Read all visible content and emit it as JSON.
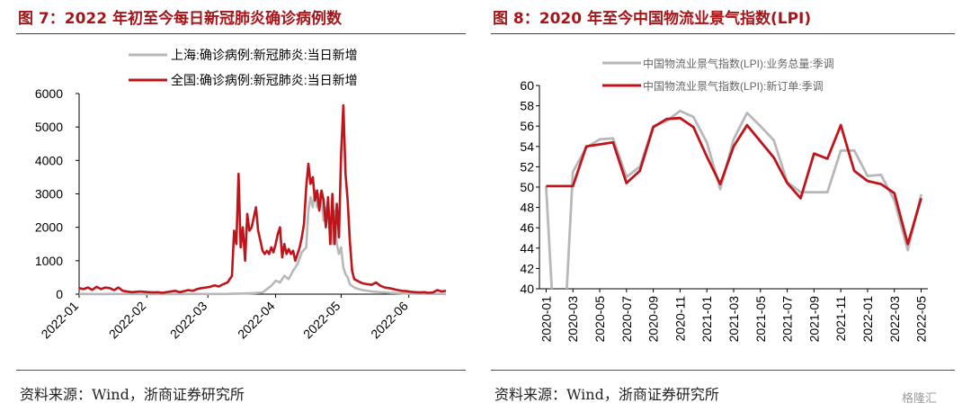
{
  "left": {
    "title": "图 7：2022 年初至今每日新冠肺炎确诊病例数",
    "source": "资料来源：Wind，浙商证券研究所"
  },
  "right": {
    "title": "图 8：2020 年至今中国物流业景气指数(LPI)",
    "source": "资料来源：Wind，浙商证券研究所"
  },
  "watermark": "格隆汇",
  "colors": {
    "red": "#c0141b",
    "gray": "#b8b8b8",
    "title": "#a5161b"
  },
  "chart_data": [
    {
      "type": "line",
      "title": "图 7：2022 年初至今每日新冠肺炎确诊病例数",
      "xlabel": "",
      "ylabel": "",
      "ylim": [
        0,
        6000
      ],
      "yticks": [
        0,
        1000,
        2000,
        3000,
        4000,
        5000,
        6000
      ],
      "ytick_labels": [
        "0",
        "1000",
        "2000",
        "3000",
        "4000",
        "5000",
        "6000"
      ],
      "xtick_labels": [
        "2022-01",
        "2022-02",
        "2022-03",
        "2022-04",
        "2022-05",
        "2022-06"
      ],
      "xlim": [
        0,
        168
      ],
      "xticks": [
        0,
        31,
        59,
        90,
        120,
        151
      ],
      "legend_position": "top",
      "series": [
        {
          "name": "上海:确诊病例:新冠肺炎:当日新增",
          "color": "#b8b8b8",
          "points": [
            [
              0,
              5
            ],
            [
              10,
              3
            ],
            [
              20,
              5
            ],
            [
              30,
              2
            ],
            [
              40,
              4
            ],
            [
              50,
              5
            ],
            [
              59,
              5
            ],
            [
              66,
              5
            ],
            [
              70,
              10
            ],
            [
              75,
              20
            ],
            [
              80,
              30
            ],
            [
              84,
              50
            ],
            [
              86,
              150
            ],
            [
              88,
              250
            ],
            [
              90,
              400
            ],
            [
              92,
              350
            ],
            [
              94,
              550
            ],
            [
              96,
              450
            ],
            [
              98,
              700
            ],
            [
              100,
              900
            ],
            [
              102,
              1250
            ],
            [
              104,
              1400
            ],
            [
              105,
              2500
            ],
            [
              106,
              2900
            ],
            [
              107,
              2600
            ],
            [
              108,
              3100
            ],
            [
              109,
              2600
            ],
            [
              110,
              3000
            ],
            [
              111,
              2800
            ],
            [
              112,
              2200
            ],
            [
              113,
              2600
            ],
            [
              114,
              2300
            ],
            [
              115,
              1800
            ],
            [
              116,
              1500
            ],
            [
              117,
              2500
            ],
            [
              118,
              1500
            ],
            [
              119,
              1200
            ],
            [
              120,
              1400
            ],
            [
              121,
              800
            ],
            [
              122,
              600
            ],
            [
              123,
              500
            ],
            [
              124,
              300
            ],
            [
              126,
              200
            ],
            [
              128,
              150
            ],
            [
              130,
              120
            ],
            [
              134,
              80
            ],
            [
              138,
              60
            ],
            [
              142,
              40
            ],
            [
              146,
              30
            ],
            [
              150,
              20
            ],
            [
              155,
              15
            ],
            [
              160,
              10
            ],
            [
              165,
              8
            ],
            [
              168,
              5
            ]
          ]
        },
        {
          "name": "全国:确诊病例:新冠肺炎:当日新增",
          "color": "#c0141b",
          "points": [
            [
              0,
              180
            ],
            [
              2,
              150
            ],
            [
              4,
              200
            ],
            [
              6,
              130
            ],
            [
              8,
              220
            ],
            [
              10,
              150
            ],
            [
              12,
              200
            ],
            [
              14,
              180
            ],
            [
              16,
              120
            ],
            [
              18,
              200
            ],
            [
              20,
              100
            ],
            [
              22,
              80
            ],
            [
              24,
              60
            ],
            [
              26,
              70
            ],
            [
              28,
              80
            ],
            [
              30,
              70
            ],
            [
              32,
              60
            ],
            [
              34,
              50
            ],
            [
              36,
              60
            ],
            [
              38,
              40
            ],
            [
              40,
              60
            ],
            [
              42,
              80
            ],
            [
              44,
              100
            ],
            [
              46,
              60
            ],
            [
              48,
              90
            ],
            [
              50,
              120
            ],
            [
              52,
              100
            ],
            [
              54,
              150
            ],
            [
              56,
              180
            ],
            [
              58,
              200
            ],
            [
              60,
              220
            ],
            [
              62,
              260
            ],
            [
              64,
              230
            ],
            [
              66,
              300
            ],
            [
              68,
              350
            ],
            [
              70,
              550
            ],
            [
              71,
              1900
            ],
            [
              72,
              1500
            ],
            [
              73,
              3600
            ],
            [
              74,
              1400
            ],
            [
              75,
              2000
            ],
            [
              76,
              1000
            ],
            [
              77,
              2400
            ],
            [
              78,
              1900
            ],
            [
              79,
              2000
            ],
            [
              80,
              2300
            ],
            [
              81,
              2600
            ],
            [
              82,
              1900
            ],
            [
              83,
              1600
            ],
            [
              84,
              1300
            ],
            [
              85,
              1200
            ],
            [
              86,
              1300
            ],
            [
              87,
              1200
            ],
            [
              88,
              1400
            ],
            [
              89,
              1250
            ],
            [
              90,
              1500
            ],
            [
              91,
              1800
            ],
            [
              92,
              2000
            ],
            [
              93,
              1100
            ],
            [
              94,
              1500
            ],
            [
              95,
              1200
            ],
            [
              96,
              1350
            ],
            [
              97,
              1200
            ],
            [
              98,
              1300
            ],
            [
              99,
              1000
            ],
            [
              100,
              1200
            ],
            [
              101,
              1400
            ],
            [
              102,
              1700
            ],
            [
              103,
              2100
            ],
            [
              104,
              3200
            ],
            [
              105,
              3900
            ],
            [
              106,
              3300
            ],
            [
              107,
              3500
            ],
            [
              108,
              2800
            ],
            [
              109,
              3100
            ],
            [
              110,
              2500
            ],
            [
              111,
              3100
            ],
            [
              112,
              2800
            ],
            [
              113,
              2000
            ],
            [
              114,
              2900
            ],
            [
              115,
              1500
            ],
            [
              116,
              3000
            ],
            [
              117,
              1500
            ],
            [
              118,
              2700
            ],
            [
              119,
              1700
            ],
            [
              120,
              4200
            ],
            [
              121,
              5650
            ],
            [
              122,
              3600
            ],
            [
              123,
              2800
            ],
            [
              124,
              1600
            ],
            [
              125,
              700
            ],
            [
              126,
              450
            ],
            [
              128,
              380
            ],
            [
              130,
              320
            ],
            [
              132,
              300
            ],
            [
              134,
              280
            ],
            [
              136,
              350
            ],
            [
              138,
              250
            ],
            [
              140,
              200
            ],
            [
              142,
              180
            ],
            [
              144,
              150
            ],
            [
              146,
              120
            ],
            [
              148,
              100
            ],
            [
              150,
              90
            ],
            [
              152,
              70
            ],
            [
              154,
              60
            ],
            [
              156,
              50
            ],
            [
              158,
              60
            ],
            [
              160,
              40
            ],
            [
              162,
              50
            ],
            [
              164,
              120
            ],
            [
              166,
              80
            ],
            [
              168,
              100
            ]
          ]
        }
      ]
    },
    {
      "type": "line",
      "title": "图 8：2020 年至今中国物流业景气指数(LPI)",
      "xlabel": "",
      "ylabel": "",
      "ylim": [
        40,
        60
      ],
      "yticks": [
        40,
        42,
        44,
        46,
        48,
        50,
        52,
        54,
        56,
        58,
        60
      ],
      "ytick_labels": [
        "40",
        "42",
        "44",
        "46",
        "48",
        "50",
        "52",
        "54",
        "56",
        "58",
        "60"
      ],
      "categories": [
        "2020-01",
        "2020-02",
        "2020-03",
        "2020-04",
        "2020-05",
        "2020-06",
        "2020-07",
        "2020-08",
        "2020-09",
        "2020-10",
        "2020-11",
        "2020-12",
        "2021-01",
        "2021-02",
        "2021-03",
        "2021-04",
        "2021-05",
        "2021-06",
        "2021-07",
        "2021-08",
        "2021-09",
        "2021-10",
        "2021-11",
        "2021-12",
        "2022-01",
        "2022-02",
        "2022-03",
        "2022-04",
        "2022-05"
      ],
      "xtick_labels": [
        "2020-01",
        "2020-03",
        "2020-05",
        "2020-07",
        "2020-09",
        "2020-11",
        "2021-01",
        "2021-03",
        "2021-05",
        "2021-07",
        "2021-09",
        "2021-11",
        "2022-01",
        "2022-03",
        "2022-05"
      ],
      "legend_position": "top",
      "series": [
        {
          "name": "中国物流业景气指数(LPI):业务总量:季调",
          "color": "#b8b8b8",
          "values": [
            50.1,
            26.2,
            51.5,
            53.9,
            54.7,
            54.8,
            51.0,
            52.0,
            56.0,
            56.5,
            57.5,
            56.9,
            54.4,
            49.8,
            54.7,
            57.3,
            56.0,
            54.6,
            50.5,
            49.5,
            49.5,
            49.5,
            53.6,
            53.6,
            51.1,
            51.2,
            48.7,
            43.8,
            49.3
          ]
        },
        {
          "name": "中国物流业景气指数(LPI):新订单:季调",
          "color": "#c0141b",
          "values": [
            50.1,
            50.1,
            50.1,
            54.0,
            54.2,
            54.4,
            50.4,
            51.6,
            55.9,
            56.7,
            56.8,
            55.9,
            53.0,
            50.3,
            54.0,
            56.1,
            54.5,
            52.9,
            50.4,
            48.9,
            53.3,
            52.8,
            56.1,
            51.6,
            50.6,
            50.3,
            49.4,
            44.4,
            48.9
          ]
        }
      ]
    }
  ]
}
